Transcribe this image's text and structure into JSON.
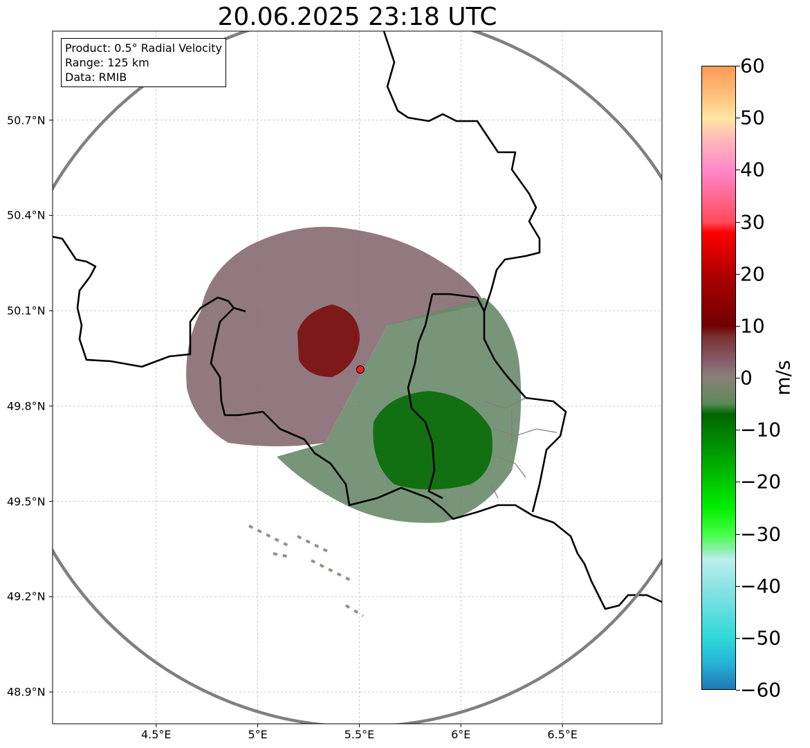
{
  "title": "20.06.2025 23:18 UTC",
  "info": {
    "product": "Product: 0.5° Radial Velocity",
    "range": "Range: 125 km",
    "data": "Data: RMIB"
  },
  "axes": {
    "lon_ticks": [
      "4.5°E",
      "5°E",
      "5.5°E",
      "6°E",
      "6.5°E"
    ],
    "lon_values": [
      4.5,
      5.0,
      5.5,
      6.0,
      6.5
    ],
    "lat_ticks": [
      "50.7°N",
      "50.4°N",
      "50.1°N",
      "49.8°N",
      "49.5°N",
      "49.2°N",
      "48.9°N"
    ],
    "lat_values": [
      50.7,
      50.4,
      50.1,
      49.8,
      49.5,
      49.2,
      48.9
    ],
    "lon_range": [
      3.99,
      6.99
    ],
    "lat_range": [
      48.8,
      50.98
    ],
    "grid": true
  },
  "radar": {
    "lon": 5.505,
    "lat": 49.915,
    "range_km": 125
  },
  "colorbar": {
    "unit": "m/s",
    "ticks": [
      "60",
      "50",
      "40",
      "30",
      "20",
      "10",
      "0",
      "−10",
      "−20",
      "−30",
      "−40",
      "−50",
      "−60"
    ],
    "tick_values": [
      60,
      50,
      40,
      30,
      20,
      10,
      0,
      -10,
      -20,
      -30,
      -40,
      -50,
      -60
    ],
    "range": [
      -60,
      60
    ],
    "stops": [
      {
        "v": -60,
        "c": "#1f77b4"
      },
      {
        "v": -55,
        "c": "#26b4d8"
      },
      {
        "v": -50,
        "c": "#2ed8d8"
      },
      {
        "v": -40,
        "c": "#8fe4e4"
      },
      {
        "v": -35,
        "c": "#bdeef0"
      },
      {
        "v": -33,
        "c": "#88f0a8"
      },
      {
        "v": -30,
        "c": "#44ff44"
      },
      {
        "v": -25,
        "c": "#00ee00"
      },
      {
        "v": -15,
        "c": "#00a000"
      },
      {
        "v": -7,
        "c": "#006400"
      },
      {
        "v": -5,
        "c": "#5a8a5a"
      },
      {
        "v": 0,
        "c": "#8a8078"
      },
      {
        "v": 3,
        "c": "#866070"
      },
      {
        "v": 8,
        "c": "#7a3030"
      },
      {
        "v": 10,
        "c": "#700000"
      },
      {
        "v": 20,
        "c": "#b00000"
      },
      {
        "v": 28,
        "c": "#ff0000"
      },
      {
        "v": 30,
        "c": "#ff4a5a"
      },
      {
        "v": 40,
        "c": "#ff88cc"
      },
      {
        "v": 46,
        "c": "#ffb8b8"
      },
      {
        "v": 50,
        "c": "#ffe6a0"
      },
      {
        "v": 55,
        "c": "#ffbb78"
      },
      {
        "v": 60,
        "c": "#ff9955"
      }
    ]
  }
}
